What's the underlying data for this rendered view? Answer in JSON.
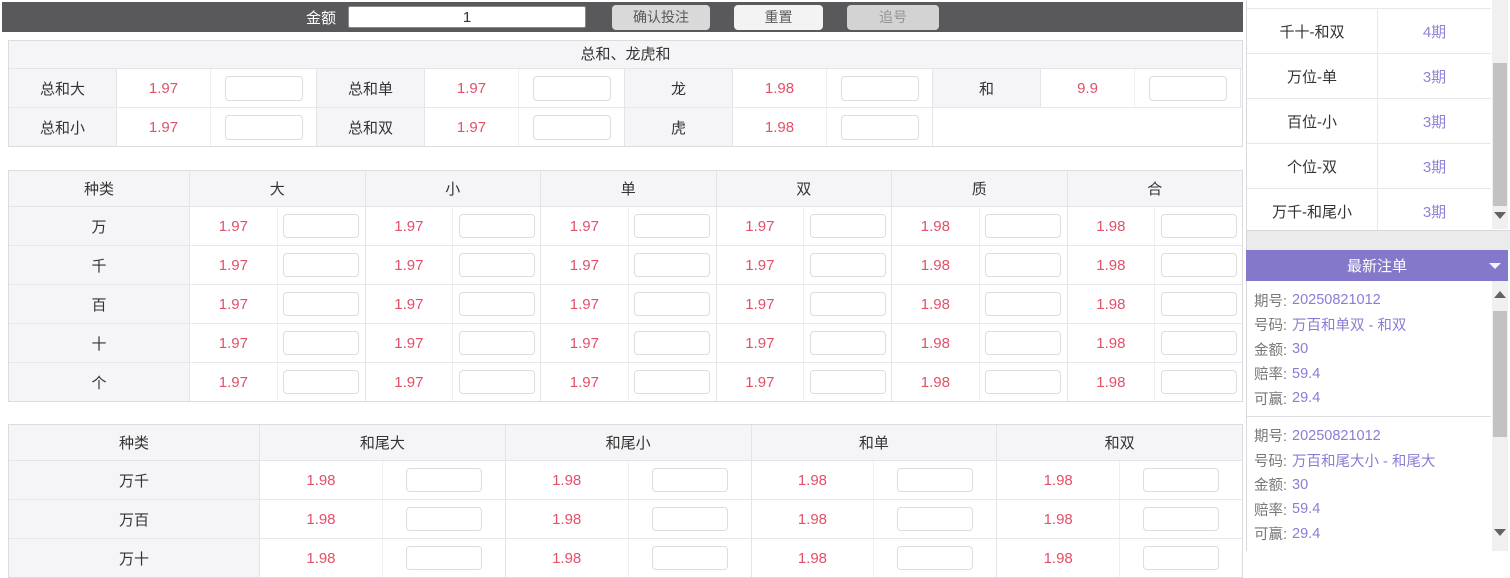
{
  "topbar": {
    "amount_label": "金额",
    "amount_value": "1",
    "confirm_label": "确认投注",
    "reset_label": "重置",
    "chase_label": "追号"
  },
  "sum_table": {
    "title": "总和、龙虎和",
    "rows": [
      [
        {
          "label": "总和大",
          "odds": "1.97"
        },
        {
          "label": "总和单",
          "odds": "1.97"
        },
        {
          "label": "龙",
          "odds": "1.98"
        },
        {
          "label": "和",
          "odds": "9.9"
        }
      ],
      [
        {
          "label": "总和小",
          "odds": "1.97"
        },
        {
          "label": "总和双",
          "odds": "1.97"
        },
        {
          "label": "虎",
          "odds": "1.98"
        }
      ]
    ]
  },
  "position_table": {
    "headers": [
      "种类",
      "大",
      "小",
      "单",
      "双",
      "质",
      "合"
    ],
    "rows": [
      {
        "label": "万",
        "odds": [
          "1.97",
          "1.97",
          "1.97",
          "1.97",
          "1.98",
          "1.98"
        ]
      },
      {
        "label": "千",
        "odds": [
          "1.97",
          "1.97",
          "1.97",
          "1.97",
          "1.98",
          "1.98"
        ]
      },
      {
        "label": "百",
        "odds": [
          "1.97",
          "1.97",
          "1.97",
          "1.97",
          "1.98",
          "1.98"
        ]
      },
      {
        "label": "十",
        "odds": [
          "1.97",
          "1.97",
          "1.97",
          "1.97",
          "1.98",
          "1.98"
        ]
      },
      {
        "label": "个",
        "odds": [
          "1.97",
          "1.97",
          "1.97",
          "1.97",
          "1.98",
          "1.98"
        ]
      }
    ]
  },
  "tail_table": {
    "headers": [
      "种类",
      "和尾大",
      "和尾小",
      "和单",
      "和双"
    ],
    "rows": [
      {
        "label": "万千",
        "odds": [
          "1.98",
          "1.98",
          "1.98",
          "1.98"
        ]
      },
      {
        "label": "万百",
        "odds": [
          "1.98",
          "1.98",
          "1.98",
          "1.98"
        ]
      },
      {
        "label": "万十",
        "odds": [
          "1.98",
          "1.98",
          "1.98",
          "1.98"
        ]
      }
    ]
  },
  "sidebar": {
    "trend_list": [
      {
        "name": "千十-和双",
        "periods": "4期"
      },
      {
        "name": "万位-单",
        "periods": "3期"
      },
      {
        "name": "百位-小",
        "periods": "3期"
      },
      {
        "name": "个位-双",
        "periods": "3期"
      },
      {
        "name": "万千-和尾小",
        "periods": "3期"
      }
    ],
    "orders_header": "最新注单",
    "order_labels": {
      "issue": "期号:",
      "number": "号码:",
      "amount": "金额:",
      "odds": "赔率:",
      "win": "可赢:"
    },
    "orders": [
      {
        "issue": "20250821012",
        "number": "万百和单双 - 和双",
        "amount": "30",
        "odds": "59.4",
        "win": "29.4"
      },
      {
        "issue": "20250821012",
        "number": "万百和尾大小 - 和尾大",
        "amount": "30",
        "odds": "59.4",
        "win": "29.4"
      }
    ]
  },
  "colors": {
    "topbar_bg": "#59595b",
    "odds_text": "#e25069",
    "accent_purple_bg": "#8478cb",
    "accent_purple_text": "#8a7cd6",
    "label_cell_bg": "#f5f5f7"
  }
}
